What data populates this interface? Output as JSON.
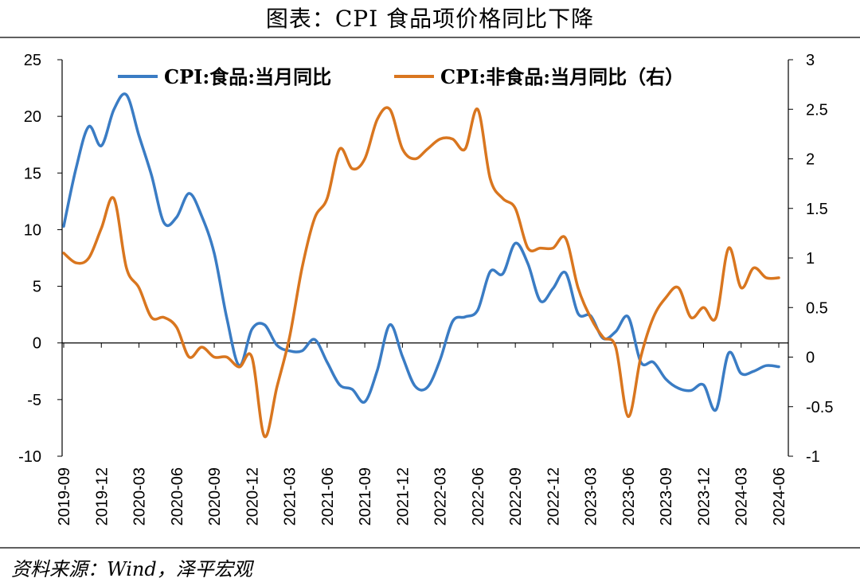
{
  "header": {
    "title": "图表：CPI 食品项价格同比下降"
  },
  "footer": {
    "source": "资料来源：Wind，泽平宏观"
  },
  "chart_data": {
    "type": "line",
    "title": "图表：CPI 食品项价格同比下降",
    "x": [
      "2019-09",
      "2019-10",
      "2019-11",
      "2019-12",
      "2020-01",
      "2020-02",
      "2020-03",
      "2020-04",
      "2020-05",
      "2020-06",
      "2020-07",
      "2020-08",
      "2020-09",
      "2020-10",
      "2020-11",
      "2020-12",
      "2021-01",
      "2021-02",
      "2021-03",
      "2021-04",
      "2021-05",
      "2021-06",
      "2021-07",
      "2021-08",
      "2021-09",
      "2021-10",
      "2021-11",
      "2021-12",
      "2022-01",
      "2022-02",
      "2022-03",
      "2022-04",
      "2022-05",
      "2022-06",
      "2022-07",
      "2022-08",
      "2022-09",
      "2022-10",
      "2022-11",
      "2022-12",
      "2023-01",
      "2023-02",
      "2023-03",
      "2023-04",
      "2023-05",
      "2023-06",
      "2023-07",
      "2023-08",
      "2023-09",
      "2023-10",
      "2023-11",
      "2023-12",
      "2024-01",
      "2024-02",
      "2024-03",
      "2024-04",
      "2024-05",
      "2024-06"
    ],
    "tick_labels": [
      "2019-09",
      "2019-12",
      "2020-03",
      "2020-06",
      "2020-09",
      "2020-12",
      "2021-03",
      "2021-06",
      "2021-09",
      "2021-12",
      "2022-03",
      "2022-06",
      "2022-09",
      "2022-12",
      "2023-03",
      "2023-06",
      "2023-09",
      "2023-12",
      "2024-03",
      "2024-06"
    ],
    "y_left": {
      "ylim": [
        -10,
        25
      ],
      "ticks": [
        "-10",
        "-5",
        "0",
        "5",
        "10",
        "15",
        "20",
        "25"
      ]
    },
    "y_right": {
      "ylim": [
        -1,
        3
      ],
      "ticks": [
        "-1",
        "-0.5",
        "0",
        "0.5",
        "1",
        "1.5",
        "2",
        "2.5",
        "3"
      ]
    },
    "legend": {
      "placement": "top"
    },
    "series": [
      {
        "name": "CPI:食品:当月同比",
        "axis": "left",
        "color": "#3a7cc4",
        "values": [
          10.3,
          15.5,
          19.1,
          17.4,
          20.6,
          21.9,
          18.3,
          14.8,
          10.6,
          11.1,
          13.2,
          11.2,
          7.9,
          2.2,
          -2.0,
          1.2,
          1.6,
          -0.2,
          -0.7,
          -0.7,
          0.3,
          -1.7,
          -3.7,
          -4.1,
          -5.2,
          -2.4,
          1.6,
          -1.2,
          -3.8,
          -3.9,
          -1.5,
          1.9,
          2.3,
          2.9,
          6.3,
          6.1,
          8.8,
          7.0,
          3.7,
          4.8,
          6.2,
          2.6,
          2.4,
          0.4,
          1.0,
          2.3,
          -1.7,
          -1.7,
          -3.2,
          -4.0,
          -4.2,
          -3.7,
          -5.9,
          -0.9,
          -2.7,
          -2.5,
          -2.0,
          -2.1
        ]
      },
      {
        "name": "CPI:非食品:当月同比（右）",
        "axis": "right",
        "color": "#d9761f",
        "values": [
          1.05,
          0.95,
          1.0,
          1.3,
          1.6,
          0.9,
          0.7,
          0.4,
          0.4,
          0.3,
          0.0,
          0.1,
          0.0,
          0.0,
          -0.1,
          0.0,
          -0.8,
          -0.3,
          0.2,
          0.9,
          1.4,
          1.6,
          2.1,
          1.9,
          2.0,
          2.4,
          2.5,
          2.1,
          2.0,
          2.1,
          2.2,
          2.2,
          2.1,
          2.5,
          1.8,
          1.6,
          1.5,
          1.1,
          1.1,
          1.1,
          1.2,
          0.7,
          0.4,
          0.2,
          0.1,
          -0.6,
          0.0,
          0.4,
          0.6,
          0.7,
          0.4,
          0.5,
          0.4,
          1.1,
          0.7,
          0.9,
          0.8,
          0.8
        ]
      }
    ]
  }
}
